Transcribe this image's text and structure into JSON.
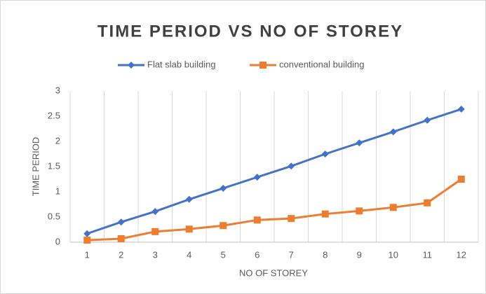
{
  "chart_data": {
    "type": "line",
    "title": "TIME PERIOD VS NO OF STOREY",
    "x_label": "NO OF STOREY",
    "y_label": "TIME PERIOD",
    "categories": [
      "1",
      "2",
      "3",
      "4",
      "5",
      "6",
      "7",
      "8",
      "9",
      "10",
      "11",
      "12"
    ],
    "series": [
      {
        "name": "Flat slab building",
        "color": "#4472c4",
        "marker": "diamond",
        "values": [
          0.17,
          0.4,
          0.61,
          0.85,
          1.07,
          1.29,
          1.51,
          1.75,
          1.97,
          2.19,
          2.42,
          2.64
        ]
      },
      {
        "name": "conventional building",
        "color": "#ed7d31",
        "marker": "square",
        "values": [
          0.04,
          0.07,
          0.21,
          0.26,
          0.33,
          0.44,
          0.47,
          0.56,
          0.62,
          0.69,
          0.78,
          1.25
        ]
      }
    ],
    "ylim": [
      0,
      3
    ],
    "yticks": [
      0,
      0.5,
      1,
      1.5,
      2,
      2.5,
      3
    ],
    "grid": "x",
    "legend": "top"
  }
}
